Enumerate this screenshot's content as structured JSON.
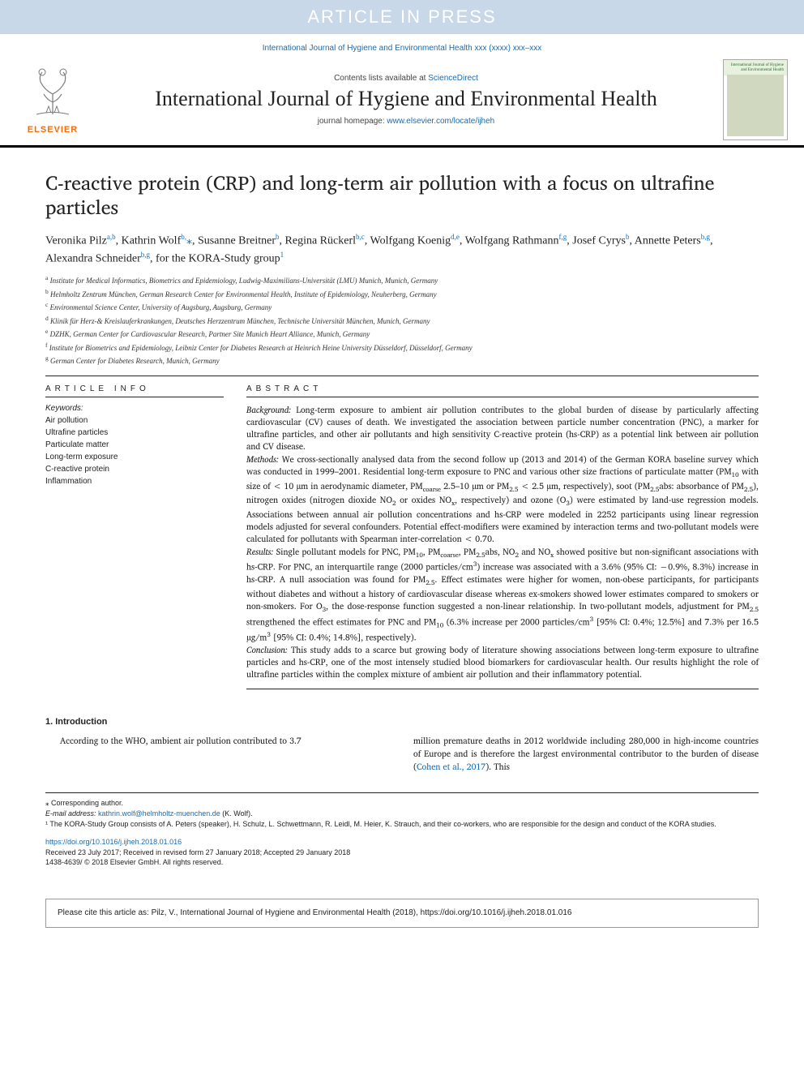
{
  "banner": "ARTICLE IN PRESS",
  "journal_ref": "International Journal of Hygiene and Environmental Health xxx (xxxx) xxx–xxx",
  "header": {
    "contents_prefix": "Contents lists available at ",
    "contents_link": "ScienceDirect",
    "journal_title": "International Journal of Hygiene and Environmental Health",
    "homepage_prefix": "journal homepage: ",
    "homepage_link": "www.elsevier.com/locate/ijheh",
    "publisher": "ELSEVIER",
    "cover_title": "International Journal of Hygiene and Environmental Health"
  },
  "title": "C-reactive protein (CRP) and long-term air pollution with a focus on ultrafine particles",
  "authors_html": "Veronika Pilz<sup>a,b</sup>, Kathrin Wolf<sup>b,</sup><span class='corr'>⁎</span>, Susanne Breitner<sup>b</sup>, Regina Rückerl<sup>b,c</sup>, Wolfgang Koenig<sup>d,e</sup>, Wolfgang Rathmann<sup>f,g</sup>, Josef Cyrys<sup>b</sup>, Annette Peters<sup>b,g</sup>, Alexandra Schneider<sup>b,g</sup>, for the KORA-Study group<sup>1</sup>",
  "affiliations": [
    "a Institute for Medical Informatics, Biometrics and Epidemiology, Ludwig-Maximilians-Universität (LMU) Munich, Munich, Germany",
    "b Helmholtz Zentrum München, German Research Center for Environmental Health, Institute of Epidemiology, Neuherberg, Germany",
    "c Environmental Science Center, University of Augsburg, Augsburg, Germany",
    "d Klinik für Herz-& Kreislauferkrankungen, Deutsches Herzzentrum München, Technische Universität München, Munich, Germany",
    "e DZHK, German Center for Cardiovascular Research, Partner Site Munich Heart Alliance, Munich, Germany",
    "f Institute for Biometrics and Epidemiology, Leibniz Center for Diabetes Research at Heinrich Heine University Düsseldorf, Düsseldorf, Germany",
    "g German Center for Diabetes Research, Munich, Germany"
  ],
  "article_info_label": "ARTICLE INFO",
  "abstract_label": "ABSTRACT",
  "keywords_label": "Keywords:",
  "keywords": [
    "Air pollution",
    "Ultrafine particles",
    "Particulate matter",
    "Long-term exposure",
    "C-reactive protein",
    "Inflammation"
  ],
  "abstract": {
    "background": "Background: Long-term exposure to ambient air pollution contributes to the global burden of disease by particularly affecting cardiovascular (CV) causes of death. We investigated the association between particle number concentration (PNC), a marker for ultrafine particles, and other air pollutants and high sensitivity C-reactive protein (hs-CRP) as a potential link between air pollution and CV disease.",
    "methods": "Methods: We cross-sectionally analysed data from the second follow up (2013 and 2014) of the German KORA baseline survey which was conducted in 1999–2001. Residential long-term exposure to PNC and various other size fractions of particulate matter (PM₁₀ with size of < 10 µm in aerodynamic diameter, PM_coarse 2.5–10 µm or PM₂.₅ < 2.5 µm, respectively), soot (PM₂.₅abs: absorbance of PM₂.₅), nitrogen oxides (nitrogen dioxide NO₂ or oxides NOₓ, respectively) and ozone (O₃) were estimated by land-use regression models. Associations between annual air pollution concentrations and hs-CRP were modeled in 2252 participants using linear regression models adjusted for several confounders. Potential effect-modifiers were examined by interaction terms and two-pollutant models were calculated for pollutants with Spearman inter-correlation < 0.70.",
    "results": "Results: Single pollutant models for PNC, PM₁₀, PM_coarse, PM₂.₅abs, NO₂ and NOₓ showed positive but non-significant associations with hs-CRP. For PNC, an interquartile range (2000 particles/cm³) increase was associated with a 3.6% (95% CI: −0.9%, 8.3%) increase in hs-CRP. A null association was found for PM₂.₅. Effect estimates were higher for women, non-obese participants, for participants without diabetes and without a history of cardiovascular disease whereas ex-smokers showed lower estimates compared to smokers or non-smokers. For O₃, the dose-response function suggested a non-linear relationship. In two-pollutant models, adjustment for PM₂.₅ strengthened the effect estimates for PNC and PM₁₀ (6.3% increase per 2000 particles/cm³ [95% CI: 0.4%; 12.5%] and 7.3% per 16.5 µg/m³ [95% CI: 0.4%; 14.8%], respectively).",
    "conclusion": "Conclusion: This study adds to a scarce but growing body of literature showing associations between long-term exposure to ultrafine particles and hs-CRP, one of the most intensely studied blood biomarkers for cardiovascular health. Our results highlight the role of ultrafine particles within the complex mixture of ambient air pollution and their inflammatory potential."
  },
  "intro": {
    "heading": "1. Introduction",
    "left": "According to the WHO, ambient air pollution contributed to 3.7",
    "right_pre": "million premature deaths in 2012 worldwide including 280,000 in high-income countries of Europe and is therefore the largest environmental contributor to the burden of disease (",
    "right_link": "Cohen et al., 2017",
    "right_post": "). This"
  },
  "footnotes": {
    "corresponding": "⁎ Corresponding author.",
    "email_label": "E-mail address: ",
    "email": "kathrin.wolf@helmholtz-muenchen.de",
    "email_suffix": " (K. Wolf).",
    "group": "¹ The KORA-Study Group consists of A. Peters (speaker), H. Schulz, L. Schwettmann, R. Leidl, M. Heier, K. Strauch, and their co-workers, who are responsible for the design and conduct of the KORA studies."
  },
  "doi": {
    "link": "https://doi.org/10.1016/j.ijheh.2018.01.016",
    "received": "Received 23 July 2017; Received in revised form 27 January 2018; Accepted 29 January 2018",
    "issn": "1438-4639/ © 2018 Elsevier GmbH. All rights reserved."
  },
  "cite_box": "Please cite this article as: Pilz, V., International Journal of Hygiene and Environmental Health (2018), https://doi.org/10.1016/j.ijheh.2018.01.016"
}
